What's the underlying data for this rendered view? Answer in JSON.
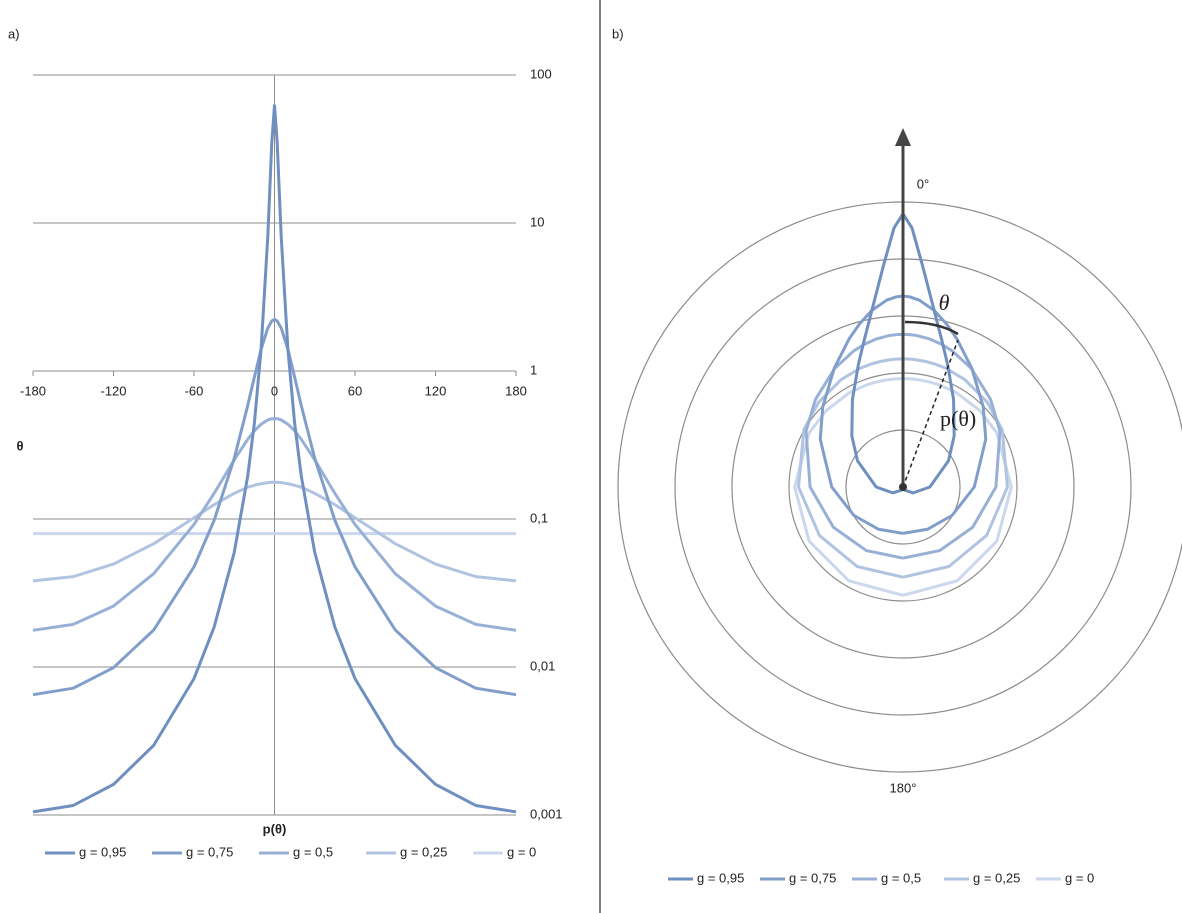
{
  "chart_data": [
    {
      "type": "line",
      "panel_label": "a)",
      "x_label": "θ",
      "y_label": "p(θ)",
      "x": [
        -180,
        -150,
        -120,
        -90,
        -60,
        -45,
        -30,
        -20,
        -15,
        -10,
        -5,
        -2,
        0,
        2,
        5,
        10,
        15,
        20,
        30,
        45,
        60,
        90,
        120,
        150,
        180
      ],
      "series": [
        {
          "name": "g = 0,95",
          "color": "#6f8fc0",
          "values": [
            0.00105,
            0.00116,
            0.00161,
            0.00296,
            0.00835,
            0.0186,
            0.0595,
            0.194,
            0.444,
            1.4,
            8.08,
            35.1,
            62.1,
            35.1,
            8.08,
            1.4,
            0.444,
            0.194,
            0.0595,
            0.0186,
            0.00835,
            0.00296,
            0.00161,
            0.00116,
            0.00105
          ]
        },
        {
          "name": "g = 0,75",
          "color": "#819ecb",
          "values": [
            0.0065,
            0.00719,
            0.0099,
            0.0178,
            0.0475,
            0.0979,
            0.257,
            0.582,
            0.909,
            1.4,
            1.95,
            2.18,
            2.23,
            2.18,
            1.95,
            1.4,
            0.909,
            0.582,
            0.257,
            0.0979,
            0.0475,
            0.0178,
            0.0099,
            0.00719,
            0.0065
          ]
        },
        {
          "name": "g = 0,5",
          "color": "#98b0d6",
          "values": [
            0.0177,
            0.0194,
            0.0258,
            0.0427,
            0.0919,
            0.149,
            0.251,
            0.345,
            0.394,
            0.437,
            0.467,
            0.476,
            0.477,
            0.476,
            0.467,
            0.437,
            0.394,
            0.345,
            0.251,
            0.149,
            0.0919,
            0.0427,
            0.0258,
            0.0194,
            0.0177
          ]
        },
        {
          "name": "g = 0,25",
          "color": "#b0c3e1",
          "values": [
            0.0382,
            0.0408,
            0.0496,
            0.0681,
            0.102,
            0.125,
            0.149,
            0.164,
            0.169,
            0.173,
            0.176,
            0.177,
            0.177,
            0.177,
            0.176,
            0.173,
            0.169,
            0.164,
            0.149,
            0.125,
            0.102,
            0.0681,
            0.0496,
            0.0408,
            0.0382
          ]
        },
        {
          "name": "g = 0",
          "color": "#cad7ec",
          "values": [
            0.0796,
            0.0796,
            0.0796,
            0.0796,
            0.0796,
            0.0796,
            0.0796,
            0.0796,
            0.0796,
            0.0796,
            0.0796,
            0.0796,
            0.0796,
            0.0796,
            0.0796,
            0.0796,
            0.0796,
            0.0796,
            0.0796,
            0.0796,
            0.0796,
            0.0796,
            0.0796,
            0.0796,
            0.0796
          ]
        }
      ],
      "xlim": [
        -180,
        180
      ],
      "xticks": [
        -180,
        -120,
        -60,
        0,
        60,
        120,
        180
      ],
      "ylim": [
        0.001,
        100
      ],
      "log_y": true,
      "yticks": [
        {
          "value": 0.001,
          "label": "0,001"
        },
        {
          "value": 0.01,
          "label": "0,01"
        },
        {
          "value": 0.1,
          "label": "0,1"
        },
        1,
        10,
        100
      ],
      "xaxis_crosses": 1,
      "yaxis_crosses": 0,
      "grid": true,
      "legend": "bottom"
    },
    {
      "type": "polar",
      "panel_label": "b)",
      "theta": [
        -180,
        -150,
        -120,
        -90,
        -60,
        -45,
        -30,
        -20,
        -15,
        -10,
        -5,
        -2,
        0,
        2,
        5,
        10,
        15,
        20,
        30,
        45,
        60,
        90,
        120,
        150,
        180
      ],
      "series": [
        {
          "name": "g = 0,95",
          "color": "#6f8fc0",
          "values": [
            0.00105,
            0.00116,
            0.00161,
            0.00296,
            0.00835,
            0.0186,
            0.0595,
            0.194,
            0.444,
            1.4,
            8.08,
            35.1,
            62.1,
            35.1,
            8.08,
            1.4,
            0.444,
            0.194,
            0.0595,
            0.0186,
            0.00835,
            0.00296,
            0.00161,
            0.00116,
            0.00105
          ]
        },
        {
          "name": "g = 0,75",
          "color": "#819ecb",
          "values": [
            0.0065,
            0.00719,
            0.0099,
            0.0178,
            0.0475,
            0.0979,
            0.257,
            0.582,
            0.909,
            1.4,
            1.95,
            2.18,
            2.23,
            2.18,
            1.95,
            1.4,
            0.909,
            0.582,
            0.257,
            0.0979,
            0.0475,
            0.0178,
            0.0099,
            0.00719,
            0.0065
          ]
        },
        {
          "name": "g = 0,5",
          "color": "#98b0d6",
          "values": [
            0.0177,
            0.0194,
            0.0258,
            0.0427,
            0.0919,
            0.149,
            0.251,
            0.345,
            0.394,
            0.437,
            0.467,
            0.476,
            0.477,
            0.476,
            0.467,
            0.437,
            0.394,
            0.345,
            0.251,
            0.149,
            0.0919,
            0.0427,
            0.0258,
            0.0194,
            0.0177
          ]
        },
        {
          "name": "g = 0,25",
          "color": "#b0c3e1",
          "values": [
            0.0382,
            0.0408,
            0.0496,
            0.0681,
            0.102,
            0.125,
            0.149,
            0.164,
            0.169,
            0.173,
            0.176,
            0.177,
            0.177,
            0.177,
            0.176,
            0.173,
            0.169,
            0.164,
            0.149,
            0.125,
            0.102,
            0.0681,
            0.0496,
            0.0408,
            0.0382
          ]
        },
        {
          "name": "g = 0",
          "color": "#cad7ec",
          "values": [
            0.0796,
            0.0796,
            0.0796,
            0.0796,
            0.0796,
            0.0796,
            0.0796,
            0.0796,
            0.0796,
            0.0796,
            0.0796,
            0.0796,
            0.0796,
            0.0796,
            0.0796,
            0.0796,
            0.0796,
            0.0796,
            0.0796,
            0.0796,
            0.0796,
            0.0796,
            0.0796,
            0.0796,
            0.0796
          ]
        }
      ],
      "rlim": [
        0.001,
        100
      ],
      "rticks": [
        0.01,
        0.1,
        1,
        10,
        100
      ],
      "log_r": true,
      "thetaticks": [
        {
          "value": 0,
          "label": "0°"
        },
        {
          "value": 180,
          "label": "180°"
        }
      ],
      "annotations": [
        "θ",
        "p(θ)"
      ],
      "legend": "bottom"
    }
  ]
}
